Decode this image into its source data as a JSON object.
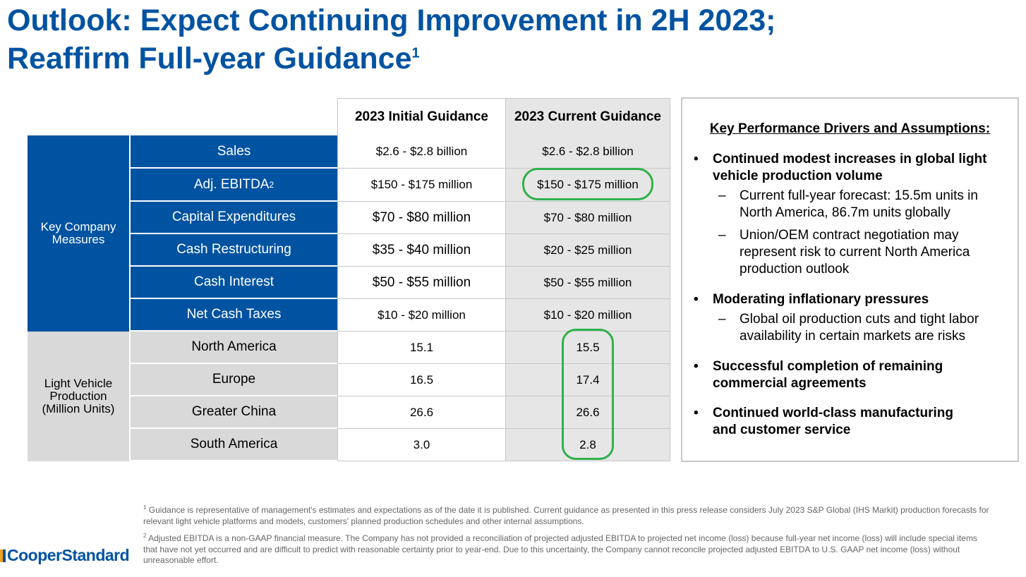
{
  "title": {
    "line1": "Outlook: Expect Continuing Improvement in 2H 2023;",
    "line2": "Reaffirm Full-year Guidance",
    "sup": "1"
  },
  "table": {
    "col_initial": "2023 Initial Guidance",
    "col_current": "2023 Current Guidance",
    "group_company": "Key Company Measures",
    "group_vehicle": "Light Vehicle Production (Million Units)",
    "rows": [
      {
        "label": "Sales",
        "initial": "$2.6 - $2.8 billion",
        "current": "$2.6 - $2.8 billion"
      },
      {
        "label": "Adj. EBITDA",
        "label_sup": "2",
        "initial": "$150 - $175 million",
        "current": "$150 - $175 million"
      },
      {
        "label": "Capital Expenditures",
        "initial": "$70 - $80 million",
        "current": "$70 - $80 million"
      },
      {
        "label": "Cash Restructuring",
        "initial": "$35 - $40 million",
        "current": "$20 - $25 million"
      },
      {
        "label": "Cash Interest",
        "initial": "$50 - $55 million",
        "current": "$50 - $55 million"
      },
      {
        "label": "Net Cash Taxes",
        "initial": "$10 - $20 million",
        "current": "$10 - $20 million"
      },
      {
        "label": "North America",
        "initial": "15.1",
        "current": "15.5"
      },
      {
        "label": "Europe",
        "initial": "16.5",
        "current": "17.4"
      },
      {
        "label": "Greater China",
        "initial": "26.6",
        "current": "26.6"
      },
      {
        "label": "South America",
        "initial": "3.0",
        "current": "2.8"
      }
    ]
  },
  "drivers": {
    "title": "Key Performance Drivers and Assumptions:",
    "bullet_glyph": "•",
    "dash_glyph": "–",
    "b1": "Continued modest increases in global light vehicle production volume",
    "b1_s1": "Current full-year forecast: 15.5m units in North America, 86.7m units globally",
    "b1_s2": "Union/OEM contract negotiation may represent risk to current North America production outlook",
    "b2": "Moderating inflationary pressures",
    "b2_s1": "Global oil production cuts and tight labor availability in certain markets are risks",
    "b3": "Successful completion of remaining commercial agreements",
    "b4": "Continued world-class manufacturing and customer service"
  },
  "footnotes": {
    "fn1_num": "1",
    "fn1": "Guidance is representative of management's estimates and expectations as of the date it is published.  Current guidance as presented in this press release considers July 2023 S&P Global (IHS Markit) production forecasts for relevant light vehicle platforms and models, customers' planned production schedules and other internal assumptions.",
    "fn2_num": "2",
    "fn2": "Adjusted EBITDA is a non-GAAP financial measure. The Company has not provided a reconciliation of projected adjusted EBITDA to projected net income (loss) because full-year net income (loss) will include special items that have not yet occurred and are difficult to predict with reasonable certainty prior to year-end.  Due to this uncertainty, the Company cannot reconcile projected adjusted EBITDA to U.S. GAAP net income (loss) without unreasonable effort."
  },
  "logo": {
    "text": "CooperStandard"
  },
  "colors": {
    "brand_blue": "#0053a1",
    "highlight_green": "#2fb14b",
    "grey": "#d9d9d9"
  }
}
